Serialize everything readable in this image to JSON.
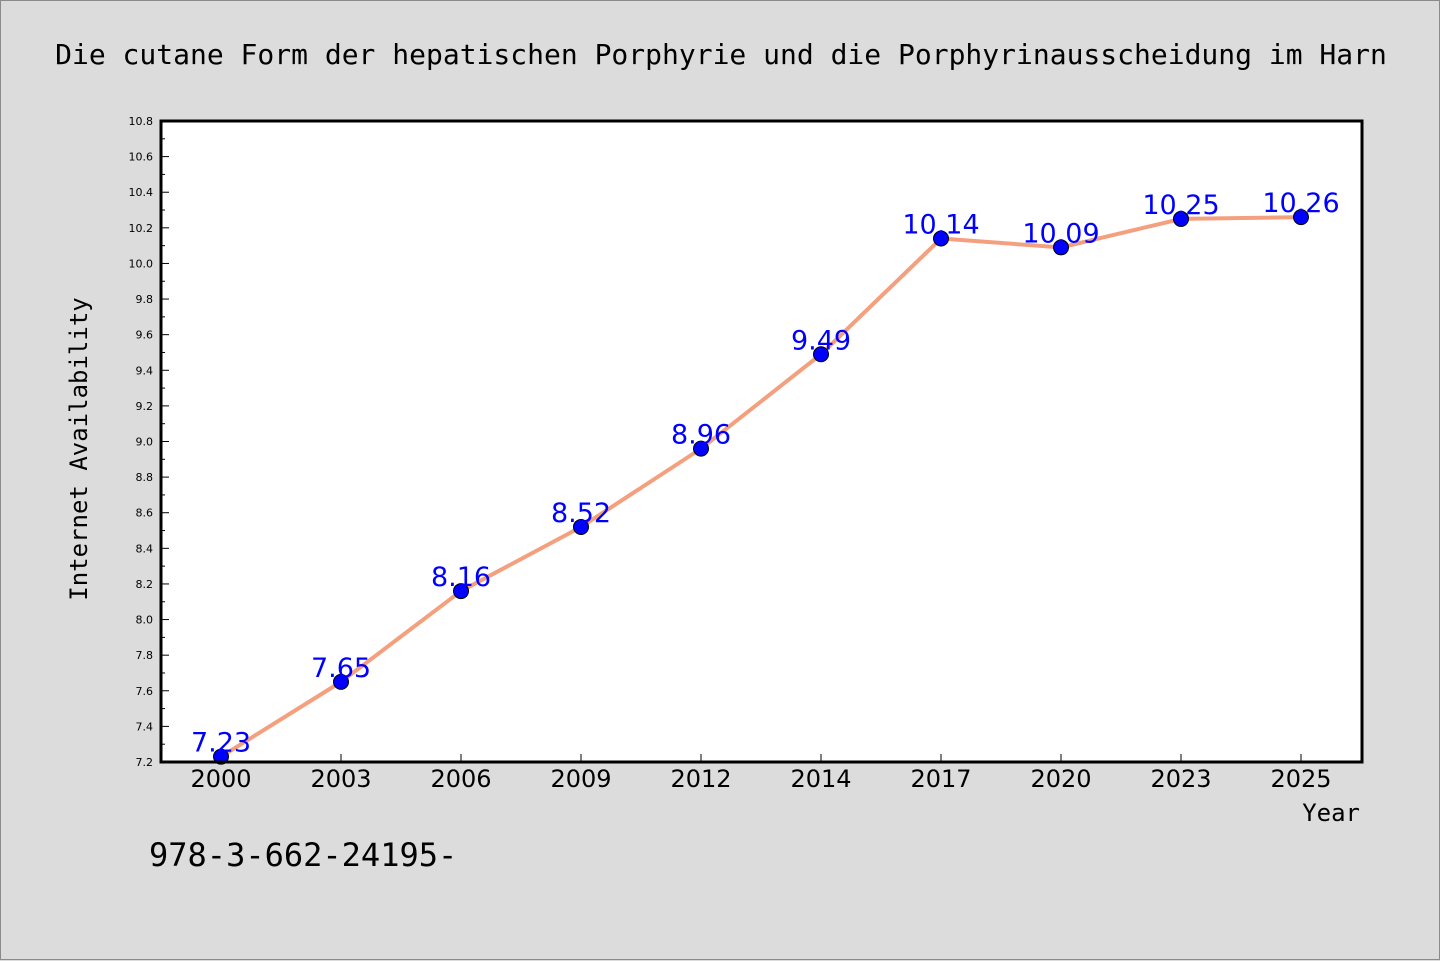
{
  "chart_data": {
    "type": "line",
    "title": "Die cutane Form der hepatischen Porphyrie und die Porphyrinausscheidung im Harn",
    "xlabel": "Year",
    "ylabel": "Internet Availability",
    "categories": [
      "2000",
      "2003",
      "2006",
      "2009",
      "2012",
      "2014",
      "2017",
      "2020",
      "2023",
      "2025"
    ],
    "series": [
      {
        "values": [
          7.23,
          7.65,
          8.16,
          8.52,
          8.96,
          9.49,
          10.14,
          10.09,
          10.25,
          10.26
        ],
        "labels": [
          "7.23",
          "7.65",
          "8.16",
          "8.52",
          "8.96",
          "9.49",
          "10.14",
          "10.09",
          "10.25",
          "10.26"
        ]
      }
    ],
    "ylim": [
      7.2,
      10.8
    ],
    "yticks": [
      "7.2",
      "7.4",
      "7.6",
      "7.8",
      "8.0",
      "8.2",
      "8.4",
      "8.6",
      "8.8",
      "9.0",
      "9.2",
      "9.4",
      "9.6",
      "9.8",
      "10.0",
      "10.2",
      "10.4",
      "10.6",
      "10.8"
    ],
    "grid": false,
    "line_color": "#f4a07e",
    "marker_color": "#0000ff",
    "label_color": "#0000ff",
    "footnote": "978-3-662-24195-"
  }
}
